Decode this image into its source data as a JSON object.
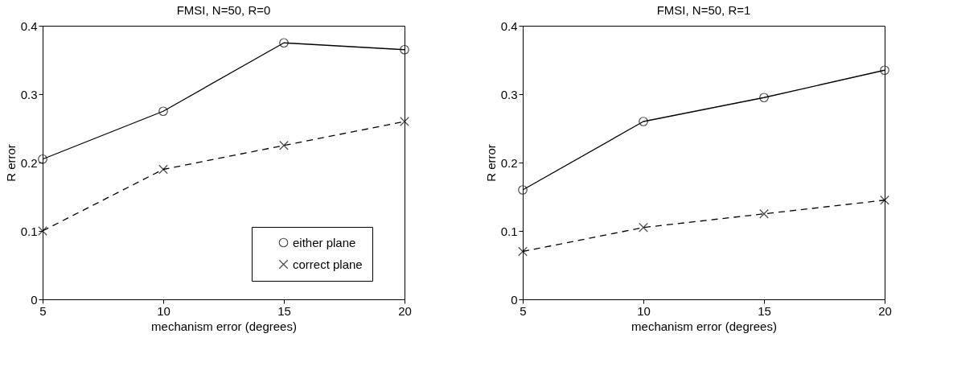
{
  "chart_data": [
    {
      "type": "line",
      "title": "FMSI, N=50, R=0",
      "xlabel": "mechanism error (degrees)",
      "ylabel": "R error",
      "x": [
        5,
        10,
        15,
        20
      ],
      "xlim": [
        5,
        20
      ],
      "xticks": [
        5,
        10,
        15,
        20
      ],
      "ylim": [
        0,
        0.4
      ],
      "yticks": [
        0,
        0.1,
        0.2,
        0.3,
        0.4
      ],
      "grid": false,
      "legend": "bottom right",
      "series": [
        {
          "name": "either plane",
          "color": "#000000",
          "marker": "circle",
          "line_style": "solid",
          "values": [
            0.205,
            0.275,
            0.375,
            0.365
          ]
        },
        {
          "name": "correct plane",
          "color": "#000000",
          "marker": "cross",
          "line_style": "dashed",
          "values": [
            0.1,
            0.19,
            0.225,
            0.26
          ]
        }
      ]
    },
    {
      "type": "line",
      "title": "FMSI, N=50, R=1",
      "xlabel": "mechanism error (degrees)",
      "ylabel": "R error",
      "x": [
        5,
        10,
        15,
        20
      ],
      "xlim": [
        5,
        20
      ],
      "xticks": [
        5,
        10,
        15,
        20
      ],
      "ylim": [
        0,
        0.4
      ],
      "yticks": [
        0,
        0.1,
        0.2,
        0.3,
        0.4
      ],
      "grid": false,
      "legend": false,
      "series": [
        {
          "color": "#000000",
          "marker": "circle",
          "line_style": "solid",
          "values": [
            0.16,
            0.26,
            0.295,
            0.335
          ]
        },
        {
          "color": "#000000",
          "marker": "cross",
          "line_style": "dashed",
          "values": [
            0.07,
            0.105,
            0.125,
            0.145
          ]
        }
      ]
    }
  ]
}
